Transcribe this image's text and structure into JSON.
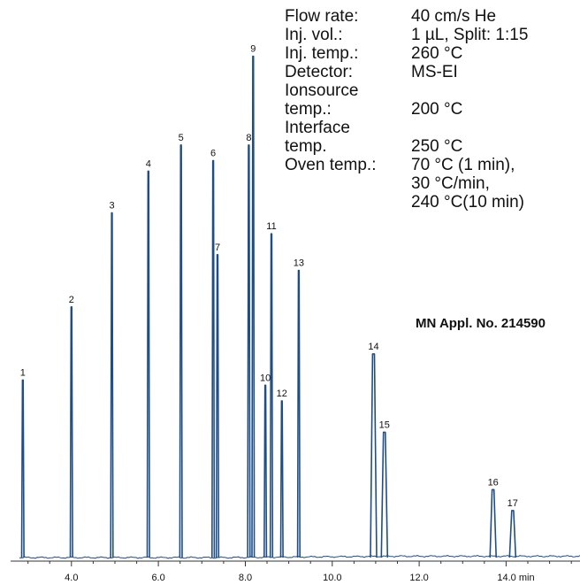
{
  "conditions": [
    {
      "label": "Flow rate:",
      "value": "40 cm/s He"
    },
    {
      "label": "Inj. vol.:",
      "value": "1 µL, Split: 1:15"
    },
    {
      "label": "Inj. temp.:",
      "value": "260 °C"
    },
    {
      "label": "Detector:",
      "value": "MS-EI"
    },
    {
      "label": "Ionsource\ntemp.:",
      "value": "\n200 °C"
    },
    {
      "label": "Interface\ntemp.",
      "value": "\n250 °C"
    },
    {
      "label": "Oven temp.:",
      "value": "70 °C (1 min),\n30 °C/min,\n240 °C(10 min)"
    }
  ],
  "application_note": "MN Appl. No. 214590",
  "chart_data": {
    "type": "line",
    "x_unit": "min",
    "xlim": [
      2.6,
      15.7
    ],
    "ylim": [
      0,
      100
    ],
    "x_ticks": [
      {
        "value": 4.0,
        "label": "4.0"
      },
      {
        "value": 6.0,
        "label": "6.0"
      },
      {
        "value": 8.0,
        "label": "8.0"
      },
      {
        "value": 10.0,
        "label": "10.0"
      },
      {
        "value": 12.0,
        "label": "12.0"
      },
      {
        "value": 14.0,
        "label": "14.0 min"
      }
    ],
    "series_color": "#1f4e87",
    "peaks": [
      {
        "label": "1",
        "rt": 2.88,
        "height": 34
      },
      {
        "label": "2",
        "rt": 4.0,
        "height": 48
      },
      {
        "label": "3",
        "rt": 4.93,
        "height": 66
      },
      {
        "label": "4",
        "rt": 5.77,
        "height": 74
      },
      {
        "label": "5",
        "rt": 6.52,
        "height": 79
      },
      {
        "label": "6",
        "rt": 7.26,
        "height": 76
      },
      {
        "label": "7",
        "rt": 7.36,
        "height": 58
      },
      {
        "label": "8",
        "rt": 8.08,
        "height": 79
      },
      {
        "label": "9",
        "rt": 8.18,
        "height": 96
      },
      {
        "label": "10",
        "rt": 8.46,
        "height": 33
      },
      {
        "label": "11",
        "rt": 8.6,
        "height": 62
      },
      {
        "label": "12",
        "rt": 8.84,
        "height": 30
      },
      {
        "label": "13",
        "rt": 9.23,
        "height": 55
      },
      {
        "label": "14",
        "rt": 10.95,
        "height": 39
      },
      {
        "label": "15",
        "rt": 11.2,
        "height": 24
      },
      {
        "label": "16",
        "rt": 13.7,
        "height": 13
      },
      {
        "label": "17",
        "rt": 14.15,
        "height": 9
      }
    ]
  }
}
